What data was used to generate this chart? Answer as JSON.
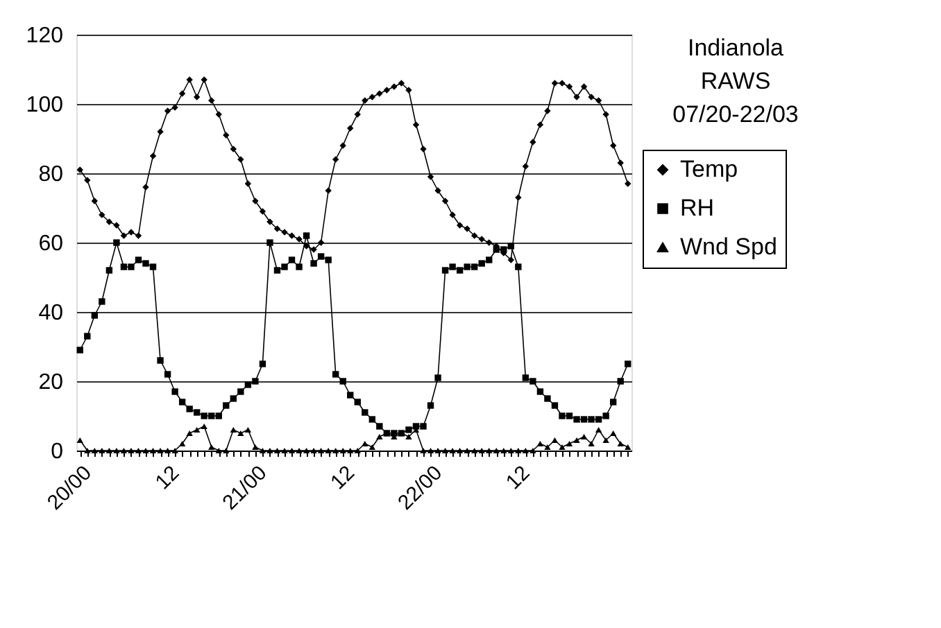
{
  "chart_data": {
    "type": "line",
    "title": "Indianola RAWS 07/20-22/03",
    "categories": [
      "20/00",
      null,
      null,
      null,
      null,
      null,
      null,
      null,
      null,
      null,
      null,
      null,
      "12",
      null,
      null,
      null,
      null,
      null,
      null,
      null,
      null,
      null,
      null,
      null,
      "21/00",
      null,
      null,
      null,
      null,
      null,
      null,
      null,
      null,
      null,
      null,
      null,
      "12",
      null,
      null,
      null,
      null,
      null,
      null,
      null,
      null,
      null,
      null,
      null,
      "22/00",
      null,
      null,
      null,
      null,
      null,
      null,
      null,
      null,
      null,
      null,
      null,
      "12",
      null,
      null,
      null,
      null,
      null,
      null,
      null,
      null,
      null,
      null,
      null,
      null,
      null,
      null,
      null
    ],
    "series": [
      {
        "name": "Temp",
        "color": "#000000",
        "marker": "diamond",
        "values": [
          81,
          78,
          72,
          68,
          66,
          65,
          62,
          63,
          62,
          76,
          85,
          92,
          98,
          99,
          103,
          107,
          102,
          107,
          101,
          97,
          91,
          87,
          84,
          77,
          72,
          69,
          66,
          64,
          63,
          62,
          61,
          59,
          58,
          60,
          75,
          84,
          88,
          93,
          97,
          101,
          102,
          103,
          104,
          105,
          106,
          104,
          94,
          87,
          79,
          75,
          72,
          68,
          65,
          64,
          62,
          61,
          60,
          59,
          57,
          55,
          73,
          82,
          89,
          94,
          98,
          106,
          106,
          105,
          102,
          105,
          102,
          101,
          97,
          88,
          83,
          77
        ]
      },
      {
        "name": "RH",
        "color": "#000000",
        "marker": "square",
        "values": [
          29,
          33,
          39,
          43,
          52,
          60,
          53,
          53,
          55,
          54,
          53,
          26,
          22,
          17,
          14,
          12,
          11,
          10,
          10,
          10,
          13,
          15,
          17,
          19,
          20,
          25,
          60,
          52,
          53,
          55,
          53,
          62,
          54,
          56,
          55,
          22,
          20,
          16,
          14,
          11,
          9,
          7,
          5,
          5,
          5,
          6,
          7,
          7,
          13,
          21,
          52,
          53,
          52,
          53,
          53,
          54,
          55,
          58,
          58,
          59,
          53,
          21,
          20,
          17,
          15,
          13,
          10,
          10,
          9,
          9,
          9,
          9,
          10,
          14,
          20,
          25
        ]
      },
      {
        "name": "Wnd Spd",
        "color": "#000000",
        "marker": "triangle",
        "values": [
          3,
          0,
          0,
          0,
          0,
          0,
          0,
          0,
          0,
          0,
          0,
          0,
          0,
          0,
          2,
          5,
          6,
          7,
          1,
          0,
          0,
          6,
          5,
          6,
          1,
          0,
          0,
          0,
          0,
          0,
          0,
          0,
          0,
          0,
          0,
          0,
          0,
          0,
          0,
          2,
          1,
          4,
          5,
          4,
          5,
          4,
          6,
          0,
          0,
          0,
          0,
          0,
          0,
          0,
          0,
          0,
          0,
          0,
          0,
          0,
          0,
          0,
          0,
          2,
          1,
          3,
          1,
          2,
          3,
          4,
          2,
          6,
          3,
          5,
          2,
          1
        ]
      }
    ],
    "ylim": [
      0,
      120
    ],
    "yticks": [
      0,
      20,
      40,
      60,
      80,
      100,
      120
    ],
    "grid": "y",
    "legend": "right",
    "line_style": "solid"
  }
}
